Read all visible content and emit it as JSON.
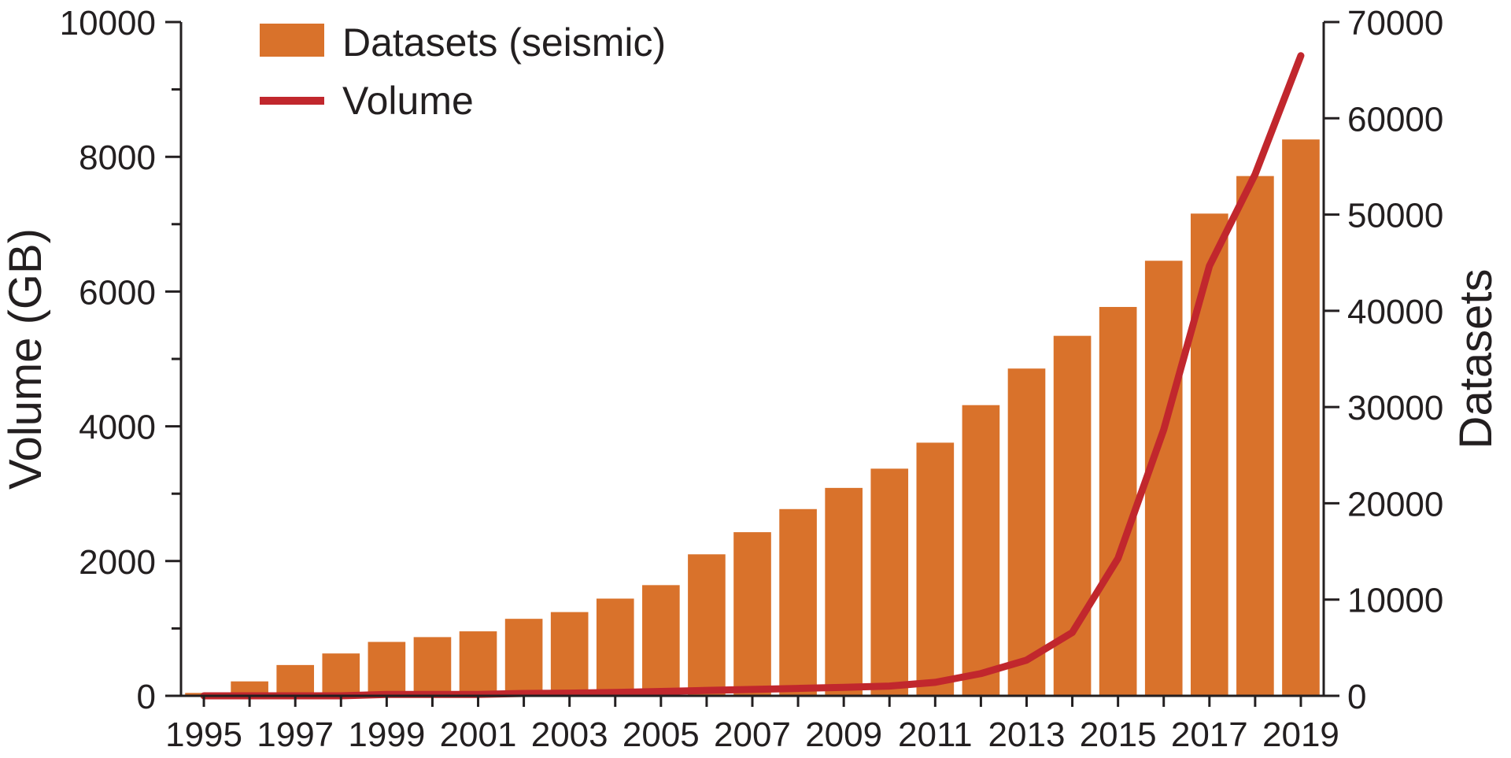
{
  "chart_data": {
    "type": "bar",
    "categories": [
      "1995",
      "1996",
      "1997",
      "1998",
      "1999",
      "2000",
      "2001",
      "2002",
      "2003",
      "2004",
      "2005",
      "2006",
      "2007",
      "2008",
      "2009",
      "2010",
      "2011",
      "2012",
      "2013",
      "2014",
      "2015",
      "2016",
      "2017",
      "2018",
      "2019"
    ],
    "x_tick_labels": [
      "1995",
      "1997",
      "1999",
      "2001",
      "2003",
      "2005",
      "2007",
      "2009",
      "2011",
      "2013",
      "2015",
      "2017",
      "2019"
    ],
    "series": [
      {
        "name": "Datasets (seismic)",
        "type": "bar",
        "axis": "right",
        "color": "#d9722b",
        "values": [
          300,
          1500,
          3200,
          4400,
          5600,
          6100,
          6700,
          8000,
          8700,
          10100,
          11500,
          14700,
          17000,
          19400,
          21600,
          23600,
          26300,
          30200,
          34000,
          37400,
          40400,
          45200,
          50100,
          54000,
          57800
        ]
      },
      {
        "name": "Volume",
        "type": "line",
        "axis": "left",
        "color": "#c1272d",
        "values": [
          0,
          0,
          0,
          0,
          20,
          20,
          20,
          35,
          40,
          50,
          65,
          80,
          95,
          110,
          125,
          145,
          200,
          330,
          530,
          940,
          2040,
          3950,
          6380,
          7740,
          9500
        ]
      }
    ],
    "ylabel_left": "Volume (GB)",
    "ylabel_right": "Datasets",
    "ylim_left": [
      0,
      10000
    ],
    "ylim_right": [
      0,
      70000
    ],
    "yticks_left": [
      "0",
      "2000",
      "4000",
      "6000",
      "8000",
      "10000"
    ],
    "yticks_right": [
      "0",
      "10000",
      "20000",
      "30000",
      "40000",
      "50000",
      "60000",
      "70000"
    ],
    "grid": false,
    "legend": "top-left"
  }
}
